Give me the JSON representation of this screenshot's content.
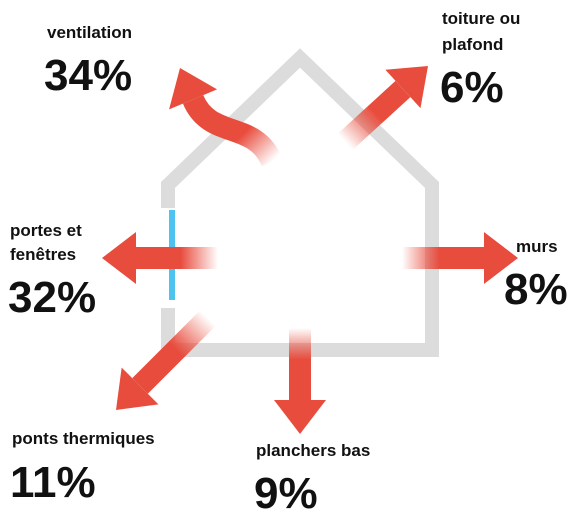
{
  "items": [
    {
      "label": [
        "ventilation"
      ],
      "value": "34%"
    },
    {
      "label": [
        "toiture ou",
        "plafond"
      ],
      "value": "6%"
    },
    {
      "label": [
        "portes et",
        "fenêtres"
      ],
      "value": "32%"
    },
    {
      "label": [
        "murs"
      ],
      "value": "8%"
    },
    {
      "label": [
        "ponts thermiques"
      ],
      "value": "11%"
    },
    {
      "label": [
        "planchers bas"
      ],
      "value": "9%"
    }
  ]
}
